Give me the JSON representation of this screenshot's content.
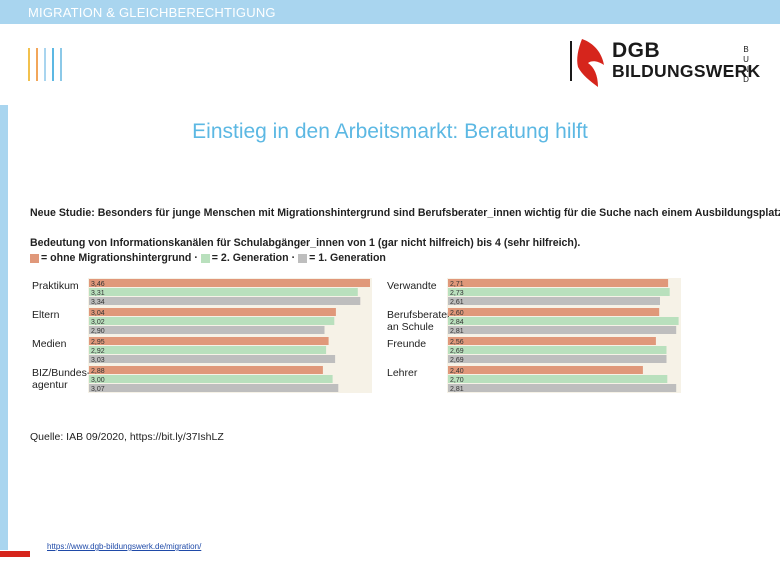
{
  "header": {
    "title": "MIGRATION & GLEICHBERECHTIGUNG"
  },
  "logo": {
    "line1": "DGB",
    "line2": "BILDUNGSWERK",
    "side": "BUND"
  },
  "slide": {
    "title": "Einstieg in den Arbeitsmarkt:  Beratung hilft",
    "subtitle": "Neue Studie: Besonders für junge Menschen mit Migrationshintergrund sind Berufsberater_innen wichtig für die Suche nach einem Ausbildungsplatz",
    "description": "Bedeutung von Informationskanälen für Schulabgänger_innen von 1 (gar nicht hilfreich) bis 4 (sehr hilfreich).",
    "legend": [
      {
        "text": "= ohne Migrationshintergrund ·",
        "color": "#e0987a"
      },
      {
        "text": "= 2. Generation ·",
        "color": "#b9e0bd"
      },
      {
        "text": "= 1. Generation",
        "color": "#bebebe"
      }
    ],
    "source": "Quelle: IAB 09/2020, https://bit.ly/37IshLZ",
    "footer_link": "https://www.dgb-bildungswerk.de/migration/"
  },
  "colors": {
    "accent_blue": "#5cb8e3",
    "bar_bg": "#a9d5ef",
    "red": "#d6251c",
    "series": [
      "#e0987a",
      "#b9e0bd",
      "#bebebe"
    ]
  },
  "chart_data": [
    {
      "type": "bar",
      "orientation": "horizontal",
      "categories": [
        "Praktikum",
        "Eltern",
        "Medien",
        "BIZ/Bundes-\nagentur"
      ],
      "series": [
        {
          "name": "ohne Migrationshintergrund",
          "values": [
            3.46,
            3.04,
            2.95,
            2.88
          ]
        },
        {
          "name": "2. Generation",
          "values": [
            3.31,
            3.02,
            2.92,
            3.0
          ]
        },
        {
          "name": "1. Generation",
          "values": [
            3.34,
            2.9,
            3.03,
            3.07
          ]
        }
      ],
      "xlim": [
        0,
        3.46
      ]
    },
    {
      "type": "bar",
      "orientation": "horizontal",
      "categories": [
        "Verwandte",
        "Berufsberater\nan Schule",
        "Freunde",
        "Lehrer"
      ],
      "series": [
        {
          "name": "ohne Migrationshintergrund",
          "values": [
            2.71,
            2.6,
            2.56,
            2.4
          ]
        },
        {
          "name": "2. Generation",
          "values": [
            2.73,
            2.84,
            2.69,
            2.7
          ]
        },
        {
          "name": "1. Generation",
          "values": [
            2.61,
            2.81,
            2.69,
            2.81
          ]
        }
      ],
      "xlim": [
        0,
        3.46
      ]
    }
  ]
}
